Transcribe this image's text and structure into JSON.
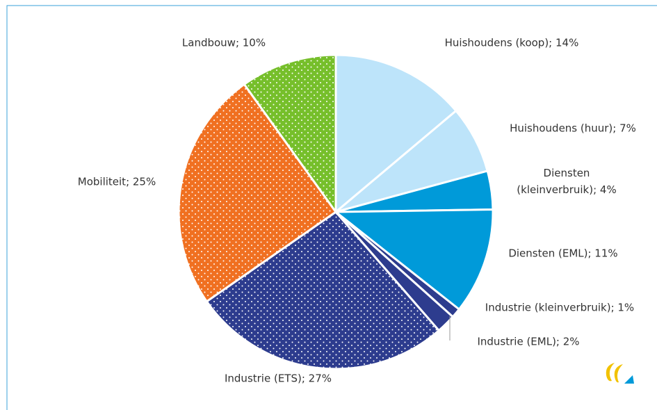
{
  "chart_data": {
    "type": "pie",
    "values": [
      14,
      7,
      4,
      11,
      1,
      2,
      27,
      25,
      10
    ],
    "value_labels": [
      "Huishoudens (koop); 14%",
      "Huishoudens (huur); 7%",
      "Diensten (kleinverbruik); 4%",
      "Diensten (EML); 11%",
      "Industrie (kleinverbruik); 1%",
      "Industrie (EML); 2%",
      "Industrie (ETS); 27%",
      "Mobiliteit; 25%",
      "Landbouw; 10%"
    ],
    "colors": [
      "#bde4fa",
      "#bde4fa",
      "#009ad9",
      "#009ad9",
      "#2d3c8e",
      "#2d3c8e",
      "#2d3c8e",
      "#f07021",
      "#76bf2b"
    ],
    "patterns": [
      "solid",
      "solid",
      "solid",
      "solid",
      "solid",
      "solid",
      "dotted",
      "dotted",
      "dotted"
    ]
  }
}
